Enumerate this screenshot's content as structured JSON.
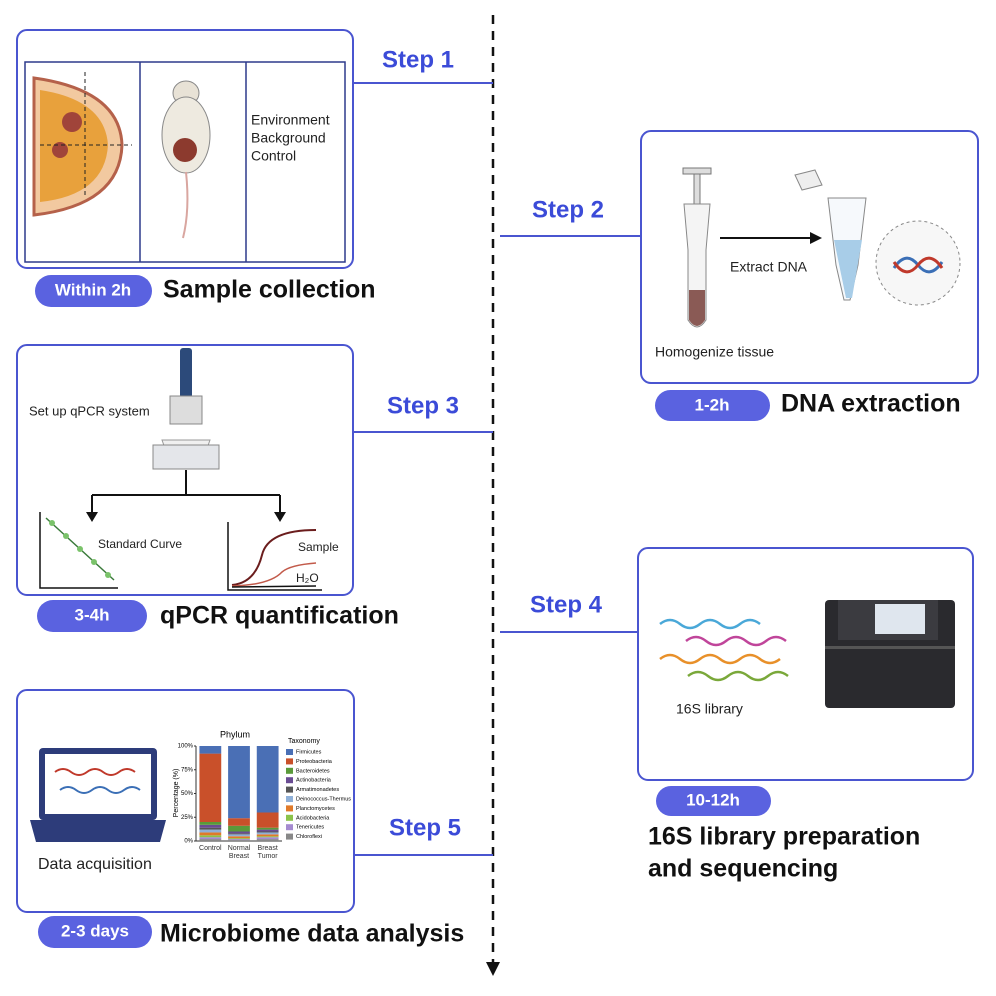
{
  "steps": [
    {
      "label": "Step 1",
      "time": "Within 2h",
      "title": "Sample collection",
      "notes": [
        "Environment",
        "Background",
        "Control"
      ]
    },
    {
      "label": "Step 2",
      "time": "1-2h",
      "title": "DNA extraction",
      "notes": [
        "Extract DNA",
        "Homogenize tissue"
      ]
    },
    {
      "label": "Step 3",
      "time": "3-4h",
      "title": "qPCR quantification",
      "notes": [
        "Set up qPCR system",
        "Standard Curve",
        "Sample",
        "H₂O"
      ]
    },
    {
      "label": "Step 4",
      "time": "10-12h",
      "title": [
        "16S library preparation",
        "and sequencing"
      ],
      "notes": [
        "16S library"
      ]
    },
    {
      "label": "Step 5",
      "time": "2-3 days",
      "title": "Microbiome data analysis",
      "notes": [
        "Data acquisition"
      ]
    }
  ],
  "chart_data": {
    "type": "stacked-bar",
    "title": "Phylum",
    "y_label": "Percentage (%)",
    "legend_title": "Taxonomy",
    "categories": [
      "Control",
      "Normal Breast",
      "Breast Tumor"
    ],
    "ylim": [
      0,
      100
    ],
    "yticks": [
      {
        "value": 0,
        "label": "0%"
      },
      {
        "value": 25,
        "label": "25%"
      },
      {
        "value": 50,
        "label": "50%"
      },
      {
        "value": 75,
        "label": "75%"
      },
      {
        "value": 100,
        "label": "100%"
      }
    ],
    "series": [
      {
        "name": "Firmicutes",
        "color": "#4a6fb5",
        "values": [
          8,
          76,
          70
        ]
      },
      {
        "name": "Proteobacteria",
        "color": "#c9502a",
        "values": [
          72,
          8,
          16
        ]
      },
      {
        "name": "Bacteroidetes",
        "color": "#5a9a3a",
        "values": [
          3,
          6,
          2
        ]
      },
      {
        "name": "Actinobacteria",
        "color": "#6a4c93",
        "values": [
          3,
          2,
          2
        ]
      },
      {
        "name": "Armatimonadetes",
        "color": "#555555",
        "values": [
          2,
          1,
          1
        ]
      },
      {
        "name": "Deinococcus-Thermus",
        "color": "#8fb0d8",
        "values": [
          3,
          2,
          2
        ]
      },
      {
        "name": "Planctomycetes",
        "color": "#e07a2a",
        "values": [
          3,
          2,
          2
        ]
      },
      {
        "name": "Acidobacteria",
        "color": "#8bc34a",
        "values": [
          2,
          1,
          1
        ]
      },
      {
        "name": "Tenericutes",
        "color": "#a58bd0",
        "values": [
          2,
          1,
          2
        ]
      },
      {
        "name": "Chloroflexi",
        "color": "#888888",
        "values": [
          2,
          1,
          2
        ]
      }
    ]
  }
}
